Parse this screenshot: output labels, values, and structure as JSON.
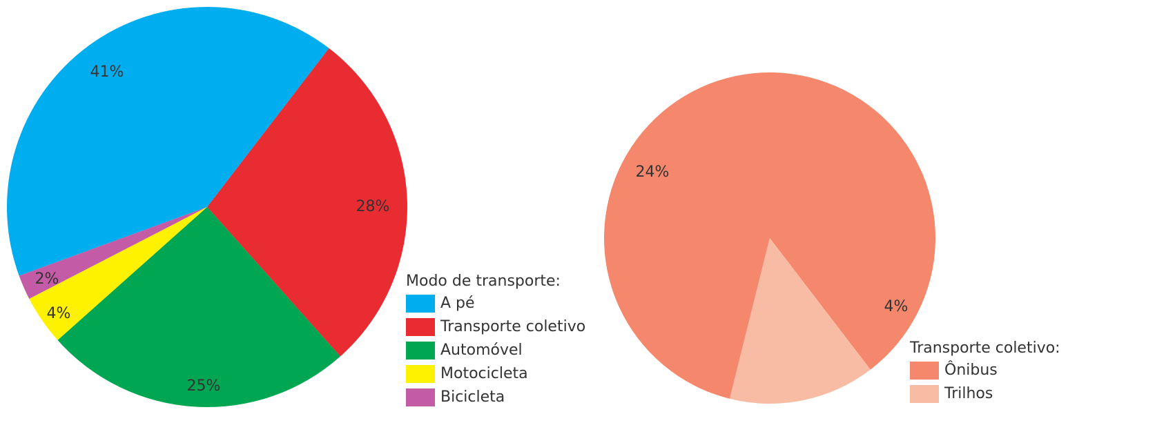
{
  "chart_data": [
    {
      "type": "pie",
      "legend_title": "Modo de transporte:",
      "categories": [
        "A pé",
        "Transporte coletivo",
        "Automóvel",
        "Motocicleta",
        "Bicicleta"
      ],
      "values": [
        41,
        28,
        25,
        4,
        2
      ],
      "value_labels": [
        "41%",
        "28%",
        "25%",
        "4%",
        "2%"
      ],
      "colors": [
        "#00aeef",
        "#e92b32",
        "#00a651",
        "#fff200",
        "#c45ba6"
      ]
    },
    {
      "type": "pie",
      "legend_title": "Transporte coletivo:",
      "categories": [
        "Ônibus",
        "Trilhos"
      ],
      "values": [
        24,
        4
      ],
      "value_labels": [
        "24%",
        "4%"
      ],
      "colors": [
        "#f4876c",
        "#f8bca5"
      ]
    }
  ]
}
